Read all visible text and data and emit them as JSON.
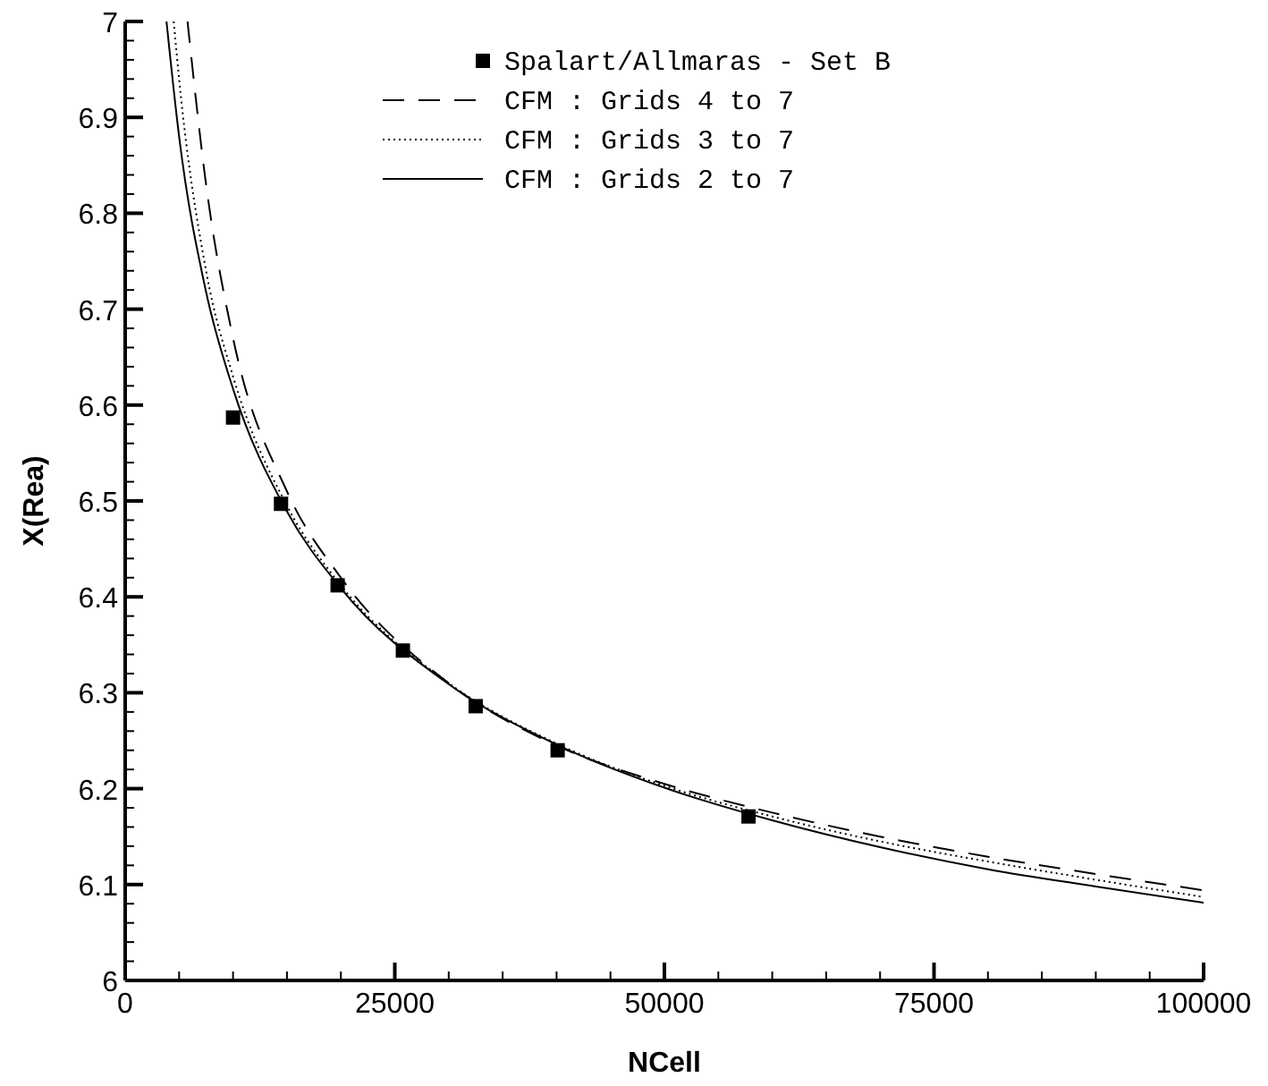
{
  "chart_data": {
    "type": "line",
    "xlabel": "NCell",
    "ylabel": "X(Rea)",
    "xlim": [
      0,
      100000
    ],
    "ylim": [
      6,
      7
    ],
    "xticks": [
      0,
      {
        "value": 5000,
        "label": null
      },
      {
        "value": 10000,
        "label": null
      },
      {
        "value": 15000,
        "label": null
      },
      {
        "value": 20000,
        "label": null
      },
      25000,
      {
        "value": 30000,
        "label": null
      },
      {
        "value": 35000,
        "label": null
      },
      {
        "value": 40000,
        "label": null
      },
      {
        "value": 45000,
        "label": null
      },
      50000,
      {
        "value": 55000,
        "label": null
      },
      {
        "value": 60000,
        "label": null
      },
      {
        "value": 65000,
        "label": null
      },
      {
        "value": 70000,
        "label": null
      },
      75000,
      {
        "value": 80000,
        "label": null
      },
      {
        "value": 85000,
        "label": null
      },
      {
        "value": 90000,
        "label": null
      },
      {
        "value": 95000,
        "label": null
      },
      100000
    ],
    "yticks": [
      6,
      {
        "value": 6.02,
        "label": null
      },
      {
        "value": 6.04,
        "label": null
      },
      {
        "value": 6.06,
        "label": null
      },
      {
        "value": 6.08,
        "label": null
      },
      6.1,
      {
        "value": 6.12,
        "label": null
      },
      {
        "value": 6.14,
        "label": null
      },
      {
        "value": 6.16,
        "label": null
      },
      {
        "value": 6.18,
        "label": null
      },
      6.2,
      {
        "value": 6.22,
        "label": null
      },
      {
        "value": 6.24,
        "label": null
      },
      {
        "value": 6.26,
        "label": null
      },
      {
        "value": 6.28,
        "label": null
      },
      6.3,
      {
        "value": 6.32,
        "label": null
      },
      {
        "value": 6.34,
        "label": null
      },
      {
        "value": 6.36,
        "label": null
      },
      {
        "value": 6.38,
        "label": null
      },
      6.4,
      {
        "value": 6.42,
        "label": null
      },
      {
        "value": 6.44,
        "label": null
      },
      {
        "value": 6.46,
        "label": null
      },
      {
        "value": 6.48,
        "label": null
      },
      6.5,
      {
        "value": 6.52,
        "label": null
      },
      {
        "value": 6.54,
        "label": null
      },
      {
        "value": 6.56,
        "label": null
      },
      {
        "value": 6.58,
        "label": null
      },
      6.6,
      {
        "value": 6.62,
        "label": null
      },
      {
        "value": 6.64,
        "label": null
      },
      {
        "value": 6.66,
        "label": null
      },
      {
        "value": 6.68,
        "label": null
      },
      6.7,
      {
        "value": 6.72,
        "label": null
      },
      {
        "value": 6.74,
        "label": null
      },
      {
        "value": 6.76,
        "label": null
      },
      {
        "value": 6.78,
        "label": null
      },
      6.8,
      {
        "value": 6.82,
        "label": null
      },
      {
        "value": 6.84,
        "label": null
      },
      {
        "value": 6.86,
        "label": null
      },
      {
        "value": 6.88,
        "label": null
      },
      6.9,
      {
        "value": 6.92,
        "label": null
      },
      {
        "value": 6.94,
        "label": null
      },
      {
        "value": 6.96,
        "label": null
      },
      {
        "value": 6.98,
        "label": null
      },
      7
    ],
    "grid": false,
    "legend": "top",
    "series": [
      {
        "name": "Spalart/Allmaras - Set B",
        "type": "scatter",
        "marker": "square",
        "color": "#000000",
        "x": [
          10000,
          14450,
          19700,
          25750,
          32500,
          40100,
          57800
        ],
        "values": [
          6.587,
          6.497,
          6.412,
          6.344,
          6.286,
          6.24,
          6.171
        ]
      },
      {
        "name": "CFM : Grids 4 to 7",
        "line_style": "dashed",
        "marker": "none",
        "color": "#000000",
        "x": [
          5780,
          7500,
          10000,
          15000,
          20000,
          30000,
          40000,
          50000,
          60000,
          70000,
          80000,
          90000,
          100000
        ],
        "values": [
          7.0,
          6.83,
          6.67,
          6.51,
          6.42,
          6.31,
          6.245,
          6.205,
          6.175,
          6.15,
          6.129,
          6.111,
          6.094
        ]
      },
      {
        "name": "CFM : Grids 3 to 7",
        "line_style": "dotted",
        "marker": "none",
        "color": "#000000",
        "x": [
          4500,
          5000,
          7500,
          10000,
          15000,
          20000,
          30000,
          40000,
          50000,
          60000,
          70000,
          80000,
          90000,
          100000
        ],
        "values": [
          7.0,
          6.94,
          6.74,
          6.63,
          6.495,
          6.412,
          6.31,
          6.247,
          6.203,
          6.171,
          6.145,
          6.124,
          6.105,
          6.087
        ]
      },
      {
        "name": "CFM : Grids 2 to 7",
        "line_style": "solid",
        "marker": "none",
        "color": "#000000",
        "x": [
          3830,
          5000,
          7500,
          10000,
          15000,
          20000,
          30000,
          40000,
          50000,
          60000,
          70000,
          80000,
          90000,
          100000
        ],
        "values": [
          7.0,
          6.88,
          6.718,
          6.617,
          6.489,
          6.409,
          6.309,
          6.246,
          6.201,
          6.167,
          6.139,
          6.116,
          6.098,
          6.081
        ]
      }
    ]
  }
}
